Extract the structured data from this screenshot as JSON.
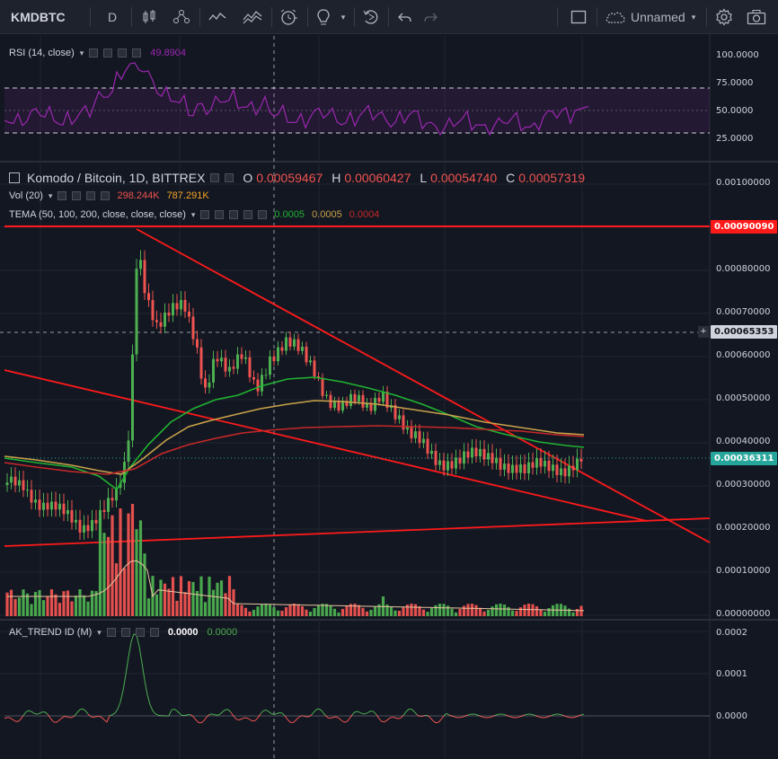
{
  "toolbar": {
    "symbol": "KMDBTC",
    "interval": "D",
    "layout_name": "Unnamed"
  },
  "rsi": {
    "title": "RSI (14, close)",
    "value": "49.8904",
    "levels": [
      "100.0000",
      "75.0000",
      "50.0000",
      "25.0000"
    ]
  },
  "main": {
    "title": "Komodo / Bitcoin, 1D, BITTREX",
    "ohlc": {
      "o_label": "O",
      "o": "0.00059467",
      "h_label": "H",
      "h": "0.00060427",
      "l_label": "L",
      "l": "0.00054740",
      "c_label": "C",
      "c": "0.00057319"
    },
    "vol": {
      "title": "Vol (20)",
      "v1": "298.244K",
      "v2": "787.291K"
    },
    "tema": {
      "title": "TEMA (50, 100, 200, close, close, close)",
      "v1": "0.0005",
      "v2": "0.0005",
      "v3": "0.0004"
    },
    "axis_labels": [
      "0.00100000",
      "0.00080000",
      "0.00070000",
      "0.00060000",
      "0.00050000",
      "0.00040000",
      "0.00030000",
      "0.00020000",
      "0.00010000",
      "0.00000000"
    ],
    "badge_high": "0.00090090",
    "badge_cross": "0.00065353",
    "badge_last": "0.00036311"
  },
  "ak": {
    "title": "AK_TREND ID (M)",
    "v1": "0.0000",
    "v2": "0.0000",
    "axis_labels": [
      "0.0002",
      "0.0001",
      "0.0000"
    ]
  },
  "colors": {
    "up": "#26a69a",
    "green": "#4caf50",
    "down": "#ef5350",
    "trendline": "#ff1a1a",
    "rsi": "#9c27b0",
    "tema_fast": "#21b331",
    "tema_mid": "#c9a24a",
    "tema_slow": "#c62828"
  }
}
